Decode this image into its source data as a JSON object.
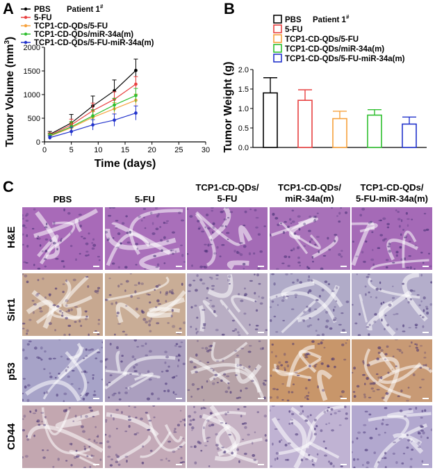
{
  "panels": {
    "a": "A",
    "b": "B",
    "c": "C"
  },
  "chart_data": [
    {
      "type": "line",
      "title": "",
      "xlabel": "Time (days)",
      "ylabel": "Tumor Volume (mm",
      "ylabel_sup": "3",
      "ylabel_tail": ")",
      "xlim": [
        0,
        30
      ],
      "ylim": [
        0,
        2000
      ],
      "x_ticks": [
        0,
        5,
        10,
        15,
        20,
        25,
        30
      ],
      "y_ticks": [
        0,
        500,
        1000,
        1500,
        2000
      ],
      "legend_note": "Patient 1",
      "legend_note_sup": "#",
      "legend_position": "top-left",
      "x": [
        1,
        5,
        9,
        13,
        17
      ],
      "series": [
        {
          "name": "PBS",
          "color": "#000000",
          "values": [
            160,
            400,
            760,
            1080,
            1510
          ],
          "errors": [
            60,
            180,
            210,
            230,
            240
          ]
        },
        {
          "name": "5-FU",
          "color": "#e84040",
          "values": [
            140,
            360,
            660,
            900,
            1220
          ],
          "errors": [
            50,
            120,
            160,
            160,
            160
          ]
        },
        {
          "name": "TCP1-CD-QDs/5-FU",
          "color": "#f7a13c",
          "values": [
            120,
            300,
            520,
            700,
            880
          ],
          "errors": [
            40,
            100,
            120,
            130,
            130
          ]
        },
        {
          "name": "TCP1-CD-QDs/miR-34a(m)",
          "color": "#2fbf2f",
          "values": [
            130,
            320,
            550,
            780,
            980
          ],
          "errors": [
            40,
            110,
            130,
            140,
            150
          ]
        },
        {
          "name": "TCP1-CD-QDs/5-FU-miR-34a(m)",
          "color": "#2233cc",
          "values": [
            90,
            220,
            360,
            460,
            610
          ],
          "errors": [
            40,
            90,
            110,
            130,
            150
          ]
        }
      ]
    },
    {
      "type": "bar",
      "title": "",
      "xlabel": "",
      "ylabel": "Tumor Weight (g)",
      "ylim": [
        0,
        2.0
      ],
      "y_ticks": [
        "0.0",
        "0.5",
        "1.0",
        "1.5",
        "2.0"
      ],
      "legend_note": "Patient 1",
      "legend_note_sup": "#",
      "legend_position": "top",
      "categories": [
        "PBS",
        "5-FU",
        "TCP1-CD-QDs/5-FU",
        "TCP1-CD-QDs/miR-34a(m)",
        "TCP1-CD-QDs/5-FU-miR-34a(m)"
      ],
      "values": [
        1.4,
        1.21,
        0.74,
        0.83,
        0.6
      ],
      "errors": [
        0.39,
        0.27,
        0.19,
        0.14,
        0.18
      ],
      "colors": [
        "#000000",
        "#e84040",
        "#f7a13c",
        "#2fbf2f",
        "#2233cc"
      ]
    }
  ],
  "histology": {
    "columns": [
      "PBS",
      "5-FU",
      "TCP1-CD-QDs/ 5-FU",
      "TCP1-CD-QDs/ miR-34a(m)",
      "TCP1-CD-QDs/ 5-FU-miR-34a(m)"
    ],
    "column_lines": [
      [
        "PBS"
      ],
      [
        "5-FU"
      ],
      [
        "TCP1-CD-QDs/",
        "5-FU"
      ],
      [
        "TCP1-CD-QDs/",
        "miR-34a(m)"
      ],
      [
        "TCP1-CD-QDs/",
        "5-FU-miR-34a(m)"
      ]
    ],
    "rows": [
      "H&E",
      "Sirt1",
      "p53",
      "CD44"
    ],
    "row_colors": [
      [
        "#a86ab8",
        "#a96fba",
        "#a46bb6",
        "#a871b9",
        "#a56ab7"
      ],
      [
        "#c7a890",
        "#c9ad96",
        "#b9aec4",
        "#b0abc8",
        "#b4aecb"
      ],
      [
        "#a7a3c8",
        "#ab9fbf",
        "#b7a3a8",
        "#c8966a",
        "#c89a75"
      ],
      [
        "#c3a7b0",
        "#c4aab8",
        "#c6b2c4",
        "#c0b3d3",
        "#b2a8cf"
      ]
    ]
  }
}
